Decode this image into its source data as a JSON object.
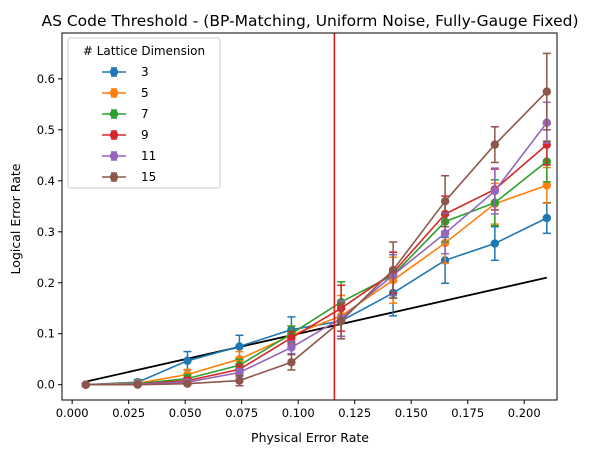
{
  "chart_data": {
    "type": "line",
    "title": "AS Code Threshold - (BP-Matching, Uniform Noise, Fully-Gauge Fixed)",
    "xlabel": "Physical Error Rate",
    "ylabel": "Logical Error Rate",
    "xlim": [
      -0.0045,
      0.2145
    ],
    "ylim": [
      -0.03,
      0.69
    ],
    "xticks": [
      0.0,
      0.025,
      0.05,
      0.075,
      0.1,
      0.125,
      0.15,
      0.175,
      0.2
    ],
    "xtick_labels": [
      "0.000",
      "0.025",
      "0.050",
      "0.075",
      "0.100",
      "0.125",
      "0.150",
      "0.175",
      "0.200"
    ],
    "yticks": [
      0.0,
      0.1,
      0.2,
      0.3,
      0.4,
      0.5,
      0.6
    ],
    "ytick_labels": [
      "0.0",
      "0.1",
      "0.2",
      "0.3",
      "0.4",
      "0.5",
      "0.6"
    ],
    "grid": false,
    "legend_title": "# Lattice Dimension",
    "legend_position": "upper-left",
    "x": [
      0.006,
      0.029,
      0.051,
      0.074,
      0.097,
      0.119,
      0.142,
      0.165,
      0.187,
      0.21
    ],
    "series": [
      {
        "name": "3",
        "color": "#1f77b4",
        "values": [
          0.0,
          0.005,
          0.047,
          0.075,
          0.108,
          0.125,
          0.18,
          0.244,
          0.277,
          0.327
        ],
        "errors": [
          0.0,
          0.005,
          0.018,
          0.022,
          0.025,
          0.03,
          0.045,
          0.045,
          0.033,
          0.03
        ]
      },
      {
        "name": "5",
        "color": "#ff7f0e",
        "values": [
          0.0,
          0.003,
          0.02,
          0.05,
          0.097,
          0.135,
          0.205,
          0.278,
          0.355,
          0.391
        ],
        "errors": [
          0.0,
          0.003,
          0.01,
          0.015,
          0.018,
          0.04,
          0.045,
          0.04,
          0.04,
          0.035
        ]
      },
      {
        "name": "7",
        "color": "#2ca02c",
        "values": [
          0.0,
          0.002,
          0.012,
          0.038,
          0.1,
          0.162,
          0.215,
          0.32,
          0.357,
          0.438
        ],
        "errors": [
          0.0,
          0.002,
          0.008,
          0.012,
          0.015,
          0.04,
          0.045,
          0.04,
          0.045,
          0.04
        ]
      },
      {
        "name": "9",
        "color": "#d62728",
        "values": [
          0.0,
          0.001,
          0.008,
          0.03,
          0.092,
          0.15,
          0.22,
          0.335,
          0.383,
          0.471
        ],
        "errors": [
          0.0,
          0.001,
          0.006,
          0.01,
          0.012,
          0.045,
          0.04,
          0.035,
          0.04,
          0.04
        ]
      },
      {
        "name": "11",
        "color": "#9467bd",
        "values": [
          0.0,
          0.001,
          0.005,
          0.024,
          0.073,
          0.13,
          0.215,
          0.297,
          0.38,
          0.514
        ],
        "errors": [
          0.0,
          0.001,
          0.004,
          0.008,
          0.012,
          0.035,
          0.04,
          0.04,
          0.045,
          0.04
        ]
      },
      {
        "name": "15",
        "color": "#8c564b",
        "values": [
          0.0,
          0.0,
          0.002,
          0.008,
          0.044,
          0.125,
          0.225,
          0.36,
          0.471,
          0.575
        ],
        "errors": [
          0.0,
          0.0,
          0.002,
          0.01,
          0.015,
          0.035,
          0.055,
          0.05,
          0.035,
          0.075
        ]
      }
    ],
    "reference_line": {
      "color": "#000000",
      "x": [
        0.006,
        0.21
      ],
      "y": [
        0.006,
        0.21
      ]
    },
    "threshold_line": {
      "color": "#e31a1c",
      "x": 0.116
    }
  }
}
